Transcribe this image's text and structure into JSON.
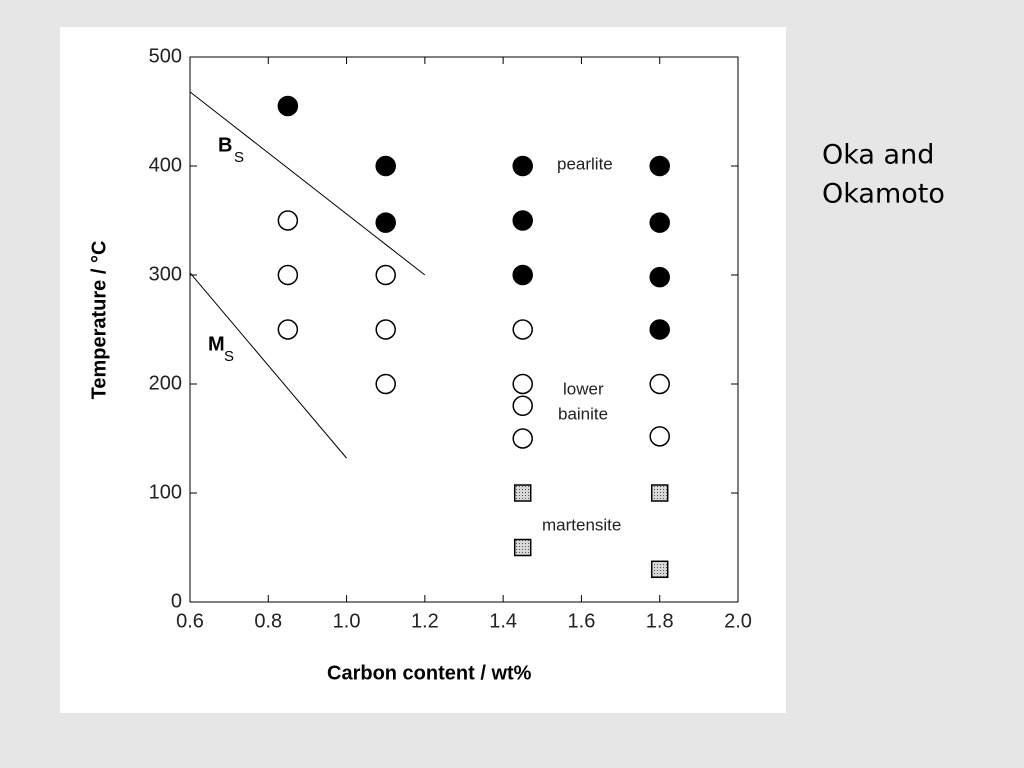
{
  "chart_data": {
    "type": "scatter",
    "xlabel": "Carbon content / wt%",
    "ylabel": "Temperature / °C",
    "xlim": [
      0.6,
      2.0
    ],
    "ylim": [
      0,
      500
    ],
    "xticks": [
      0.6,
      0.8,
      {
        "value": 1,
        "label": "1.0"
      },
      1.2,
      1.4,
      1.6,
      1.8,
      {
        "value": 2,
        "label": "2.0"
      }
    ],
    "yticks": [
      0,
      100,
      200,
      300,
      400,
      500
    ],
    "series": [
      {
        "marker": "filled",
        "color": "#000000",
        "x": [
          0.85,
          1.1,
          1.1,
          1.45,
          1.45,
          1.45,
          1.8,
          1.8,
          1.8,
          1.8
        ],
        "values": [
          455,
          400,
          348,
          400,
          350,
          300,
          400,
          348,
          298,
          250
        ]
      },
      {
        "marker": "open",
        "color": "#000000",
        "x": [
          0.85,
          0.85,
          0.85,
          1.1,
          1.1,
          1.1,
          1.45,
          1.45,
          1.45,
          1.45,
          1.8,
          1.8
        ],
        "values": [
          350,
          300,
          250,
          300,
          250,
          200,
          250,
          200,
          180,
          150,
          200,
          152
        ]
      },
      {
        "marker": "square",
        "color": "#000000",
        "x": [
          1.45,
          1.45,
          1.8,
          1.8
        ],
        "values": [
          100,
          50,
          100,
          30
        ]
      }
    ],
    "lines": [
      {
        "label": "B",
        "subscript": "S",
        "x": [
          0.6,
          1.2
        ],
        "y": [
          468,
          300
        ]
      },
      {
        "label": "M",
        "subscript": "S",
        "x": [
          0.6,
          1.0
        ],
        "y": [
          302,
          132
        ]
      }
    ],
    "annotations": [
      "pearlite",
      "lower",
      "bainite",
      "martensite"
    ]
  },
  "note": [
    "Oka and",
    "Okamoto"
  ]
}
